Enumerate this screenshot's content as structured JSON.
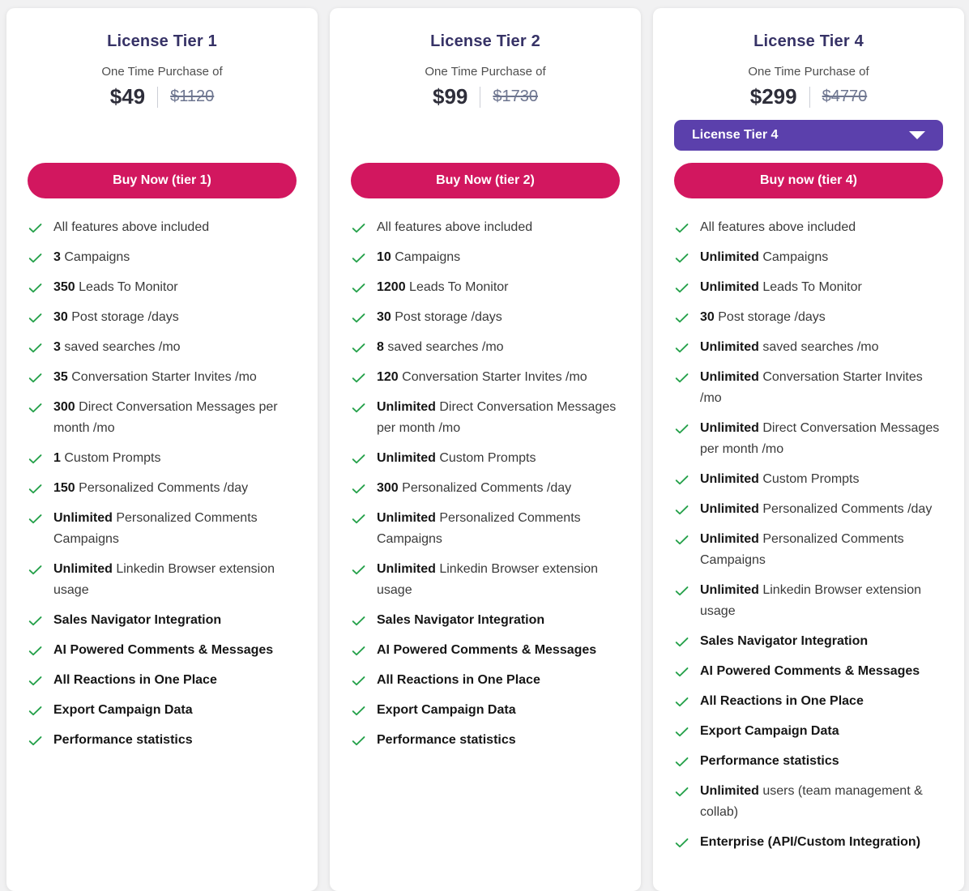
{
  "colors": {
    "page_bg": "#f1f1f2",
    "card_bg": "#ffffff",
    "title": "#363266",
    "subtitle": "#4f4f4f",
    "price": "#2e2e3a",
    "old_price": "#6e7690",
    "buy_button_bg": "#d2175f",
    "buy_button_text": "#ffffff",
    "dropdown_bg": "#5b40ac",
    "dropdown_text": "#ffffff",
    "check_green": "#26a14b",
    "feature_text": "#3a3a3a",
    "feature_bold": "#161616"
  },
  "cards": [
    {
      "title": "License Tier 1",
      "purchase_label": "One Time Purchase of",
      "price": "$49",
      "original_price": "$1120",
      "buy_label": "Buy Now (tier 1)",
      "features": [
        {
          "t": "All features above included"
        },
        {
          "b": "3",
          "t": "Campaigns"
        },
        {
          "b": "350",
          "t": "Leads To Monitor"
        },
        {
          "b": "30",
          "t": "Post storage /days"
        },
        {
          "b": "3",
          "t": "saved searches /mo"
        },
        {
          "b": "35",
          "t": "Conversation Starter Invites /mo"
        },
        {
          "b": "300",
          "t": "Direct Conversation Messages per month /mo"
        },
        {
          "b": "1",
          "t": "Custom Prompts"
        },
        {
          "b": "150",
          "t": "Personalized Comments /day"
        },
        {
          "b": "Unlimited",
          "t": "Personalized Comments Campaigns"
        },
        {
          "b": "Unlimited",
          "t": "Linkedin Browser extension usage"
        },
        {
          "b": "Sales Navigator Integration"
        },
        {
          "b": "AI Powered Comments & Messages"
        },
        {
          "b": "All Reactions in One Place"
        },
        {
          "b": "Export Campaign Data"
        },
        {
          "b": "Performance statistics"
        }
      ]
    },
    {
      "title": "License Tier 2",
      "purchase_label": "One Time Purchase of",
      "price": "$99",
      "original_price": "$1730",
      "buy_label": "Buy Now (tier 2)",
      "features": [
        {
          "t": "All features above included"
        },
        {
          "b": "10",
          "t": "Campaigns"
        },
        {
          "b": "1200",
          "t": "Leads To Monitor"
        },
        {
          "b": "30",
          "t": "Post storage /days"
        },
        {
          "b": "8",
          "t": "saved searches /mo"
        },
        {
          "b": "120",
          "t": "Conversation Starter Invites /mo"
        },
        {
          "b": "Unlimited",
          "t": "Direct Conversation Messages per month /mo"
        },
        {
          "b": "Unlimited",
          "t": "Custom Prompts"
        },
        {
          "b": "300",
          "t": "Personalized Comments /day"
        },
        {
          "b": "Unlimited",
          "t": "Personalized Comments Campaigns"
        },
        {
          "b": "Unlimited",
          "t": "Linkedin Browser extension usage"
        },
        {
          "b": "Sales Navigator Integration"
        },
        {
          "b": "AI Powered Comments & Messages"
        },
        {
          "b": "All Reactions in One Place"
        },
        {
          "b": "Export Campaign Data"
        },
        {
          "b": "Performance statistics"
        }
      ]
    },
    {
      "title": "License Tier 4",
      "purchase_label": "One Time Purchase of",
      "price": "$299",
      "original_price": "$4770",
      "dropdown_label": "License Tier 4",
      "buy_label": "Buy now (tier 4)",
      "features": [
        {
          "t": "All features above included"
        },
        {
          "b": "Unlimited",
          "t": "Campaigns"
        },
        {
          "b": "Unlimited",
          "t": "Leads To Monitor"
        },
        {
          "b": "30",
          "t": "Post storage /days"
        },
        {
          "b": "Unlimited",
          "t": "saved searches /mo"
        },
        {
          "b": "Unlimited",
          "t": "Conversation Starter Invites /mo"
        },
        {
          "b": "Unlimited",
          "t": "Direct Conversation Messages per month /mo"
        },
        {
          "b": "Unlimited",
          "t": "Custom Prompts"
        },
        {
          "b": "Unlimited",
          "t": "Personalized Comments /day"
        },
        {
          "b": "Unlimited",
          "t": "Personalized Comments Campaigns"
        },
        {
          "b": "Unlimited",
          "t": "Linkedin Browser extension usage"
        },
        {
          "b": "Sales Navigator Integration"
        },
        {
          "b": "AI Powered Comments & Messages"
        },
        {
          "b": "All Reactions in One Place"
        },
        {
          "b": "Export Campaign Data"
        },
        {
          "b": "Performance statistics"
        },
        {
          "b": "Unlimited",
          "t": "users (team management & collab)"
        },
        {
          "b": "Enterprise (API/Custom Integration)"
        }
      ]
    }
  ]
}
